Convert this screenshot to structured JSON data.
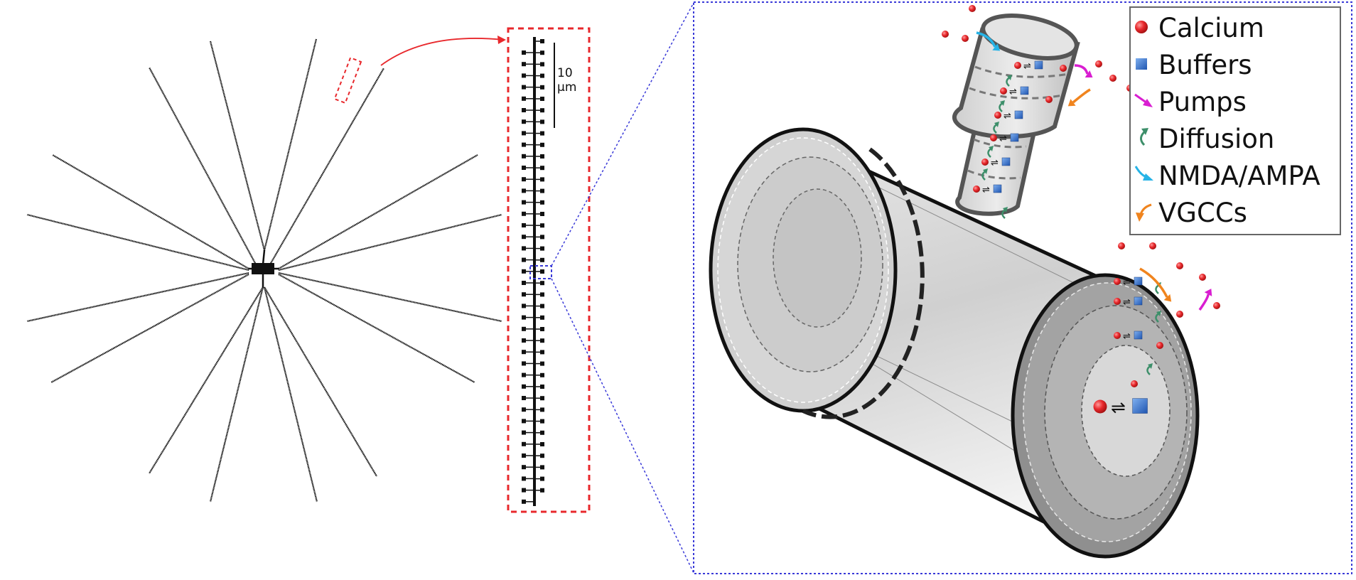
{
  "scale_bar": {
    "line1": "10",
    "line2": "µm"
  },
  "legend": {
    "items": [
      {
        "icon": "calcium-sphere",
        "label": "Calcium",
        "color": "#e8282c"
      },
      {
        "icon": "buffer-cube",
        "label": "Buffers",
        "color": "#2f6fd0"
      },
      {
        "icon": "magenta-arrow",
        "label": "Pumps",
        "color": "#d91ed1"
      },
      {
        "icon": "curved-arrow",
        "label": "Diffusion",
        "color": "#3d8f6a"
      },
      {
        "icon": "cyan-arrow",
        "label": "NMDA/AMPA",
        "color": "#27b3e6"
      },
      {
        "icon": "orange-arrow",
        "label": "VGCCs",
        "color": "#f0841e"
      }
    ]
  },
  "reaction_symbol": "⇌",
  "colors": {
    "highlight_box": "#e8282c",
    "zoom_box": "#3a3ad8",
    "neuron": "#111111",
    "cylinder_fill": "#c9c9c9"
  }
}
